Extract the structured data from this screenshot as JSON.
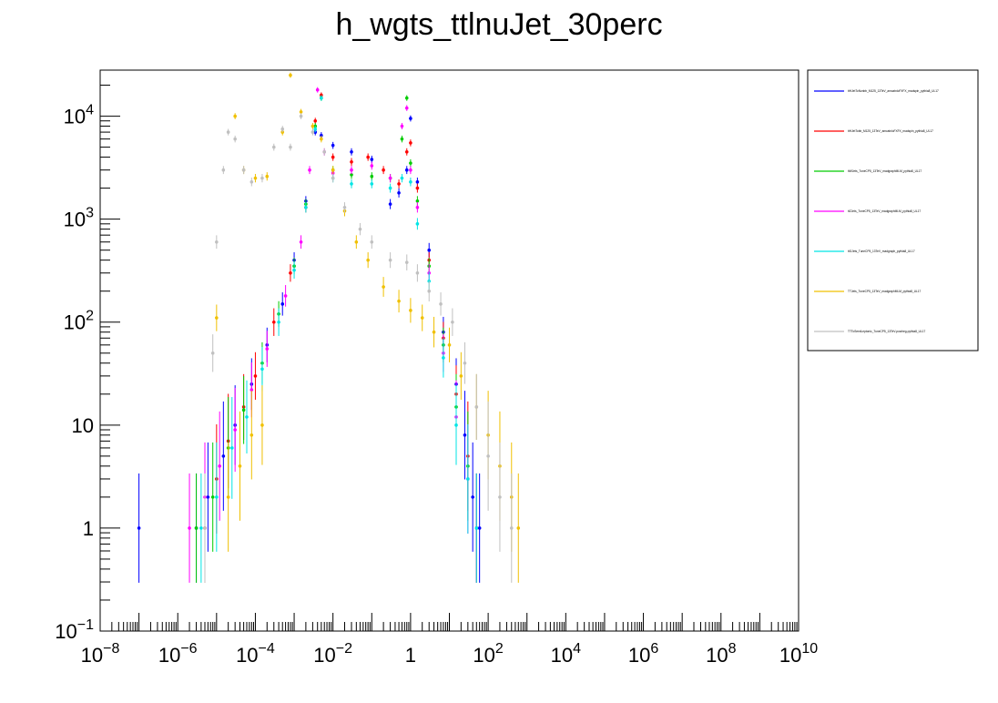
{
  "chart_data": {
    "type": "scatter",
    "title": "h_wgts_ttlnuJet_30perc",
    "x_scale": "log",
    "y_scale": "log",
    "xlim": [
      1e-08,
      10000000000.0
    ],
    "ylim": [
      0.1,
      28000
    ],
    "x_tick_labels": [
      {
        "value": 1e-08,
        "base": "10",
        "exp": "−8"
      },
      {
        "value": 1e-06,
        "base": "10",
        "exp": "−6"
      },
      {
        "value": 0.0001,
        "base": "10",
        "exp": "−4"
      },
      {
        "value": 0.01,
        "base": "10",
        "exp": "−2"
      },
      {
        "value": 1,
        "base": "1",
        "exp": ""
      },
      {
        "value": 100.0,
        "base": "10",
        "exp": "2"
      },
      {
        "value": 10000.0,
        "base": "10",
        "exp": "4"
      },
      {
        "value": 1000000.0,
        "base": "10",
        "exp": "6"
      },
      {
        "value": 100000000.0,
        "base": "10",
        "exp": "8"
      },
      {
        "value": 10000000000.0,
        "base": "10",
        "exp": "10"
      }
    ],
    "y_tick_labels": [
      {
        "value": 0.1,
        "base": "10",
        "exp": "−1"
      },
      {
        "value": 1,
        "base": "1",
        "exp": ""
      },
      {
        "value": 10,
        "base": "10",
        "exp": ""
      },
      {
        "value": 100,
        "base": "10",
        "exp": "2"
      },
      {
        "value": 1000,
        "base": "10",
        "exp": "3"
      },
      {
        "value": 10000,
        "base": "10",
        "exp": "4"
      }
    ],
    "legend_placement": "right, outside plot",
    "series": [
      {
        "name": "ttHJetToNonbb_M125_13TeV_amcatnloFXFX_madspin_pythia8_UL17",
        "color": "#0000ff",
        "points": [
          [
            1e-07,
            1
          ],
          [
            3e-06,
            1
          ],
          [
            6e-06,
            2
          ],
          [
            1.5e-05,
            5
          ],
          [
            3e-05,
            10
          ],
          [
            8e-05,
            25
          ],
          [
            0.0002,
            60
          ],
          [
            0.0005,
            150
          ],
          [
            0.001,
            400
          ],
          [
            0.002,
            1500
          ],
          [
            0.0035,
            7000
          ],
          [
            0.005,
            6500
          ],
          [
            0.01,
            5200
          ],
          [
            0.03,
            4500
          ],
          [
            0.1,
            3800
          ],
          [
            0.3,
            1400
          ],
          [
            0.5,
            1800
          ],
          [
            0.8,
            3000
          ],
          [
            1,
            9500
          ],
          [
            1.5,
            2300
          ],
          [
            3,
            500
          ],
          [
            7,
            80
          ],
          [
            15,
            25
          ],
          [
            25,
            8
          ],
          [
            40,
            2
          ],
          [
            60,
            1
          ]
        ]
      },
      {
        "name": "ttHJetTobb_M125_13TeV_amcatnloFXFX_madspin_pythia8_UL17",
        "color": "#ff0000",
        "points": [
          [
            5e-06,
            1
          ],
          [
            1e-05,
            3
          ],
          [
            2e-05,
            7
          ],
          [
            5e-05,
            15
          ],
          [
            0.0001,
            30
          ],
          [
            0.0003,
            100
          ],
          [
            0.0008,
            300
          ],
          [
            0.002,
            1300
          ],
          [
            0.0035,
            9000
          ],
          [
            0.005,
            16000
          ],
          [
            0.01,
            4000
          ],
          [
            0.03,
            3600
          ],
          [
            0.08,
            4000
          ],
          [
            0.2,
            3000
          ],
          [
            0.5,
            2200
          ],
          [
            0.8,
            4500
          ],
          [
            1,
            5500
          ],
          [
            1.5,
            2000
          ],
          [
            3,
            400
          ],
          [
            7,
            70
          ],
          [
            15,
            20
          ],
          [
            30,
            5
          ],
          [
            50,
            1
          ]
        ]
      },
      {
        "name": "ttWJets_TuneCP5_13TeV_madgraphMLM_pythia8_UL17",
        "color": "#00cc00",
        "points": [
          [
            3e-06,
            1
          ],
          [
            8e-06,
            2
          ],
          [
            2e-05,
            6
          ],
          [
            5e-05,
            14
          ],
          [
            0.00015,
            40
          ],
          [
            0.0004,
            120
          ],
          [
            0.001,
            350
          ],
          [
            0.002,
            1400
          ],
          [
            0.0035,
            8000
          ],
          [
            0.005,
            15000
          ],
          [
            0.01,
            3000
          ],
          [
            0.03,
            2700
          ],
          [
            0.1,
            2600
          ],
          [
            0.3,
            2500
          ],
          [
            0.6,
            6000
          ],
          [
            0.8,
            15000
          ],
          [
            1,
            3500
          ],
          [
            1.5,
            1500
          ],
          [
            3,
            350
          ],
          [
            7,
            60
          ],
          [
            15,
            15
          ],
          [
            30,
            4
          ],
          [
            50,
            1
          ]
        ]
      },
      {
        "name": "ttZJets_TuneCP5_13TeV_madgraphMLM_pythia8_UL17",
        "color": "#ff00ff",
        "points": [
          [
            2e-06,
            1
          ],
          [
            5e-06,
            2
          ],
          [
            1.2e-05,
            4
          ],
          [
            3e-05,
            9
          ],
          [
            8e-05,
            22
          ],
          [
            0.0002,
            55
          ],
          [
            0.0006,
            180
          ],
          [
            0.0015,
            600
          ],
          [
            0.0025,
            3000
          ],
          [
            0.004,
            18000
          ],
          [
            0.006,
            4500
          ],
          [
            0.01,
            2800
          ],
          [
            0.03,
            3000
          ],
          [
            0.1,
            3300
          ],
          [
            0.3,
            2500
          ],
          [
            0.6,
            8000
          ],
          [
            0.8,
            12000
          ],
          [
            1,
            3000
          ],
          [
            1.5,
            1300
          ],
          [
            3,
            300
          ],
          [
            7,
            50
          ],
          [
            15,
            12
          ],
          [
            30,
            3
          ],
          [
            50,
            1
          ]
        ]
      },
      {
        "name": "ttGJets_TuneCP5_13TeV_madgraph_pythia8_UL17",
        "color": "#00e5e5",
        "points": [
          [
            4e-06,
            1
          ],
          [
            1e-05,
            2
          ],
          [
            2.5e-05,
            6
          ],
          [
            6e-05,
            12
          ],
          [
            0.00015,
            35
          ],
          [
            0.0004,
            100
          ],
          [
            0.001,
            320
          ],
          [
            0.002,
            1300
          ],
          [
            0.0035,
            7500
          ],
          [
            0.005,
            15000
          ],
          [
            0.01,
            2500
          ],
          [
            0.03,
            2200
          ],
          [
            0.1,
            2200
          ],
          [
            0.3,
            2000
          ],
          [
            0.6,
            2500
          ],
          [
            1,
            2300
          ],
          [
            1.5,
            900
          ],
          [
            3,
            250
          ],
          [
            7,
            45
          ],
          [
            15,
            10
          ],
          [
            30,
            3
          ],
          [
            50,
            1
          ]
        ]
      },
      {
        "name": "TTJets_TuneCP5_13TeV_madgraphMLM_pythia8_UL17",
        "color": "#f0c000",
        "points": [
          [
            2e-05,
            2
          ],
          [
            4e-05,
            4
          ],
          [
            8e-05,
            8
          ],
          [
            0.00015,
            10
          ],
          [
            1e-05,
            110
          ],
          [
            3e-05,
            10000
          ],
          [
            5e-05,
            3000
          ],
          [
            0.0001,
            2500
          ],
          [
            0.0002,
            2600
          ],
          [
            0.0005,
            7000
          ],
          [
            0.0008,
            25000
          ],
          [
            0.0015,
            11000
          ],
          [
            0.003,
            8000
          ],
          [
            0.005,
            6000
          ],
          [
            0.01,
            3000
          ],
          [
            0.02,
            1200
          ],
          [
            0.04,
            600
          ],
          [
            0.08,
            400
          ],
          [
            0.2,
            220
          ],
          [
            0.5,
            160
          ],
          [
            1,
            130
          ],
          [
            2,
            110
          ],
          [
            4,
            80
          ],
          [
            10,
            60
          ],
          [
            20,
            30
          ],
          [
            50,
            15
          ],
          [
            100,
            8
          ],
          [
            200,
            4
          ],
          [
            400,
            2
          ],
          [
            600,
            1
          ]
        ]
      },
      {
        "name": "TTToSemiLeptonic_TuneCP5_13TeV-powheg-pythia8_UL17",
        "color": "#c0c0c0",
        "points": [
          [
            5e-06,
            1
          ],
          [
            8e-06,
            50
          ],
          [
            1e-05,
            600
          ],
          [
            1.5e-05,
            3000
          ],
          [
            2e-05,
            7000
          ],
          [
            3e-05,
            6000
          ],
          [
            5e-05,
            3000
          ],
          [
            8e-05,
            2300
          ],
          [
            0.00015,
            2500
          ],
          [
            0.0003,
            5000
          ],
          [
            0.0005,
            7500
          ],
          [
            0.0008,
            5000
          ],
          [
            0.0015,
            10000
          ],
          [
            0.003,
            7000
          ],
          [
            0.006,
            4500
          ],
          [
            0.01,
            2500
          ],
          [
            0.02,
            1300
          ],
          [
            0.05,
            800
          ],
          [
            0.1,
            600
          ],
          [
            0.3,
            400
          ],
          [
            0.8,
            380
          ],
          [
            1.5,
            300
          ],
          [
            3,
            200
          ],
          [
            6,
            150
          ],
          [
            12,
            100
          ],
          [
            25,
            40
          ],
          [
            50,
            15
          ],
          [
            100,
            5
          ],
          [
            200,
            2
          ],
          [
            400,
            1
          ]
        ]
      }
    ]
  }
}
